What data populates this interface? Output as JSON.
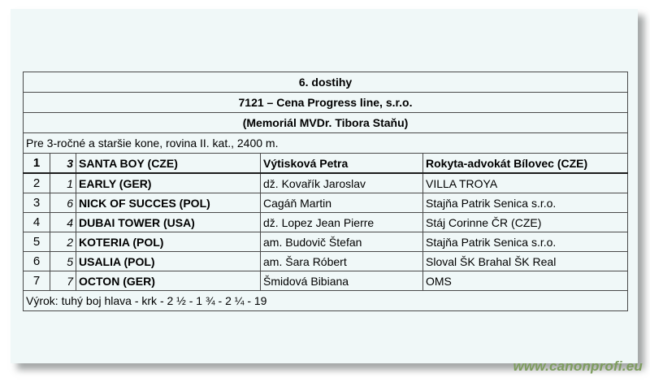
{
  "header": {
    "race_title": "6. dostihy",
    "race_name": "7121 – Cena Progress line, s.r.o.",
    "race_memorial": "(Memoriál MVDr. Tibora Staňu)",
    "race_conditions": "Pre 3-ročné a staršie kone, rovina II. kat., 2400 m."
  },
  "results": [
    {
      "place": "1",
      "number": "3",
      "horse": "SANTA BOY (CZE)",
      "rider": "Výtisková Petra",
      "owner": "Rokyta-advokát Bílovec (CZE)",
      "winner": true
    },
    {
      "place": "2",
      "number": "1",
      "horse": "EARLY (GER)",
      "rider": "dž. Kovařík Jaroslav",
      "owner": "VILLA TROYA",
      "winner": false
    },
    {
      "place": "3",
      "number": "6",
      "horse": "NICK OF SUCCES (POL)",
      "rider": "Cagáň Martin",
      "owner": "Stajňa Patrik Senica s.r.o.",
      "winner": false
    },
    {
      "place": "4",
      "number": "4",
      "horse": "DUBAI TOWER (USA)",
      "rider": "dž. Lopez Jean Pierre",
      "owner": "Stáj Corinne ČR (CZE)",
      "winner": false
    },
    {
      "place": "5",
      "number": "2",
      "horse": "KOTERIA (POL)",
      "rider": "am. Budovič Štefan",
      "owner": "Stajňa Patrik Senica s.r.o.",
      "winner": false
    },
    {
      "place": "6",
      "number": "5",
      "horse": "USALIA (POL)",
      "rider": "am. Šara Róbert",
      "owner": "Sloval ŠK Brahal ŠK Real",
      "winner": false
    },
    {
      "place": "7",
      "number": "7",
      "horse": "OCTON (GER)",
      "rider": "Šmidová Bibiana",
      "owner": "OMS",
      "winner": false
    }
  ],
  "footer": {
    "verdict": "Výrok: tuhý boj hlava - krk - 2 ½ - 1 ¾ - 2 ¼ - 19"
  },
  "watermark": {
    "url_text": "www.canonprofi.eu"
  },
  "colors": {
    "page_background": "#f0f8f8",
    "table_border": "#4a4a4a",
    "text": "#000000",
    "watermark_green": "#7d9c5e"
  }
}
